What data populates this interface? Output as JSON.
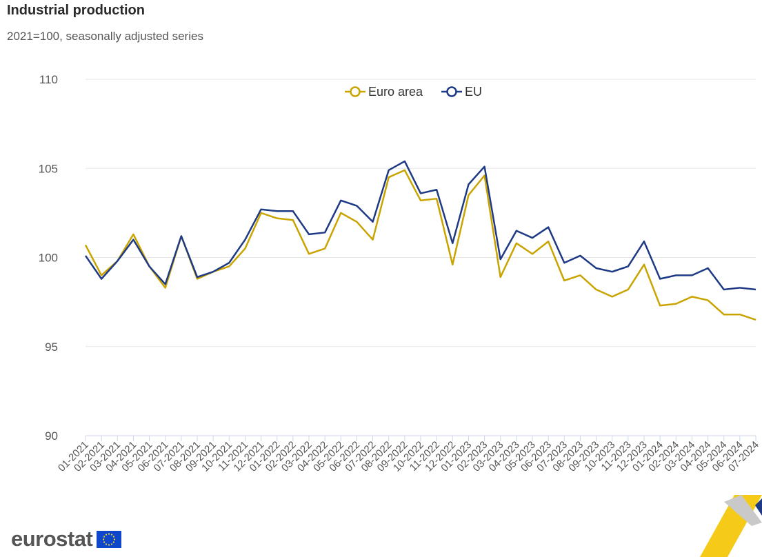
{
  "header": {
    "title": "Industrial production",
    "subtitle": "2021=100, seasonally adjusted series"
  },
  "logo": {
    "text": "eurostat"
  },
  "chart_data": {
    "type": "line",
    "title": "Industrial production",
    "subtitle": "2021=100, seasonally adjusted series",
    "xlabel": "",
    "ylabel": "",
    "ylim": [
      90,
      110
    ],
    "yticks": [
      90,
      95,
      100,
      105,
      110
    ],
    "grid": true,
    "legend": "top-center",
    "categories": [
      "01-2021",
      "02-2021",
      "03-2021",
      "04-2021",
      "05-2021",
      "06-2021",
      "07-2021",
      "08-2021",
      "09-2021",
      "10-2021",
      "11-2021",
      "12-2021",
      "01-2022",
      "02-2022",
      "03-2022",
      "04-2022",
      "05-2022",
      "06-2022",
      "07-2022",
      "08-2022",
      "09-2022",
      "10-2022",
      "11-2022",
      "12-2022",
      "01-2023",
      "02-2023",
      "03-2023",
      "04-2023",
      "05-2023",
      "06-2023",
      "07-2023",
      "08-2023",
      "09-2023",
      "10-2023",
      "11-2023",
      "12-2023",
      "01-2024",
      "02-2024",
      "03-2024",
      "04-2024",
      "05-2024",
      "06-2024",
      "07-2024"
    ],
    "series": [
      {
        "name": "Euro area",
        "color": "#c9a400",
        "values": [
          100.7,
          99.0,
          99.8,
          101.3,
          99.5,
          98.3,
          101.2,
          98.8,
          99.2,
          99.5,
          100.5,
          102.5,
          102.2,
          102.1,
          100.2,
          100.5,
          102.5,
          102.0,
          101.0,
          104.5,
          104.9,
          103.2,
          103.3,
          99.6,
          103.5,
          104.6,
          98.9,
          100.8,
          100.2,
          100.9,
          98.7,
          99.0,
          98.2,
          97.8,
          98.2,
          99.6,
          97.3,
          97.4,
          97.8,
          97.6,
          96.8,
          96.8,
          96.5
        ]
      },
      {
        "name": "EU",
        "color": "#1e3a84",
        "values": [
          100.1,
          98.8,
          99.8,
          101.0,
          99.5,
          98.5,
          101.2,
          98.9,
          99.2,
          99.7,
          101.0,
          102.7,
          102.6,
          102.6,
          101.3,
          101.4,
          103.2,
          102.9,
          102.0,
          104.9,
          105.4,
          103.6,
          103.8,
          100.8,
          104.1,
          105.1,
          99.9,
          101.5,
          101.1,
          101.7,
          99.7,
          100.1,
          99.4,
          99.2,
          99.5,
          100.9,
          98.8,
          99.0,
          99.0,
          99.4,
          98.2,
          98.3,
          98.2
        ]
      }
    ]
  }
}
